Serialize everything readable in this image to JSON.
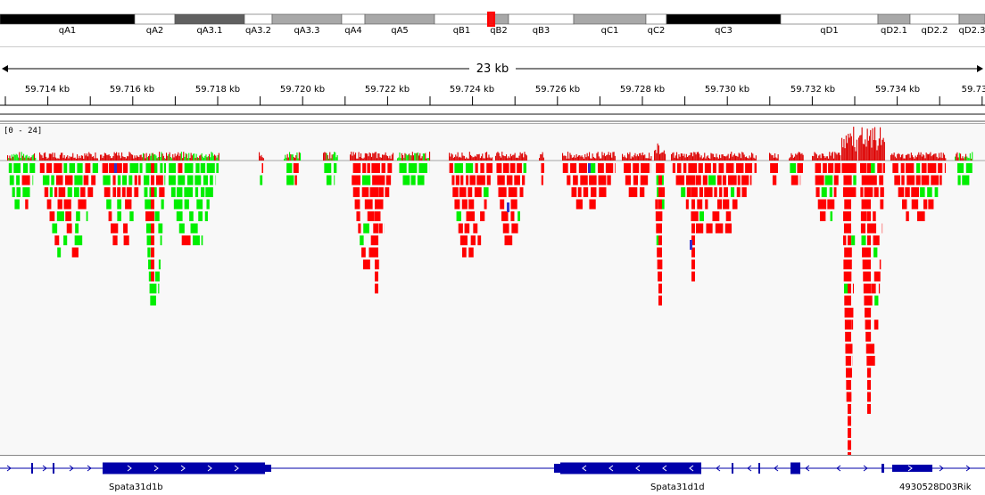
{
  "ideogram": {
    "bands": [
      {
        "label": "qA1",
        "stain": "black"
      },
      {
        "label": "qA2",
        "stain": "white"
      },
      {
        "label": "qA3.1",
        "stain": "darkgray"
      },
      {
        "label": "qA3.2",
        "stain": "white"
      },
      {
        "label": "qA3.3",
        "stain": "lightgray"
      },
      {
        "label": "qA4",
        "stain": "white"
      },
      {
        "label": "qA5",
        "stain": "lightgray"
      },
      {
        "label": "qB1",
        "stain": "white"
      },
      {
        "label": "qB2",
        "stain": "lightgray"
      },
      {
        "label": "qB3",
        "stain": "white"
      },
      {
        "label": "qC1",
        "stain": "lightgray"
      },
      {
        "label": "qC2",
        "stain": "white"
      },
      {
        "label": "qC3",
        "stain": "black"
      },
      {
        "label": "qD1",
        "stain": "white"
      },
      {
        "label": "qD2.1",
        "stain": "lightgray"
      },
      {
        "label": "qD2.2",
        "stain": "white"
      },
      {
        "label": "qD2.3",
        "stain": "lightgray"
      }
    ],
    "current_region_color": "#ff0000"
  },
  "ruler": {
    "span_label": "23 kb",
    "ticks": [
      "59.714 kb",
      "59.716 kb",
      "59.718 kb",
      "59.720 kb",
      "59.722 kb",
      "59.724 kb",
      "59.726 kb",
      "59.728 kb",
      "59.730 kb",
      "59.732 kb",
      "59.734 kb",
      "59.73"
    ]
  },
  "alignment_track": {
    "data_range": "[0 - 24]",
    "colors": {
      "forward": "#00ee00",
      "reverse": "#ff0000",
      "mismatch_blue": "#3333cc",
      "coverage": "#dd0000"
    }
  },
  "genes": {
    "color": "#0000aa",
    "items": [
      {
        "name": "Spata31d1b",
        "strand": "+"
      },
      {
        "name": "Spata31d1d",
        "strand": "-"
      },
      {
        "name": "4930528D03Rik",
        "strand": "+"
      }
    ]
  }
}
